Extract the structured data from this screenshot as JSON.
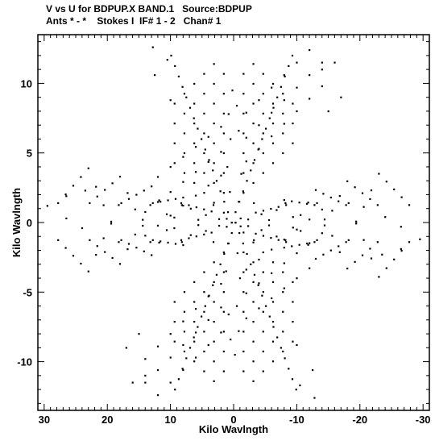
{
  "header": {
    "line1": "V vs U for BDPUP.X BAND.1   Source:BDPUP",
    "line2": "Ants * - *    Stokes I  IF# 1 - 2   Chan# 1"
  },
  "chart_data": {
    "type": "scatter",
    "xlabel": "Kilo Wavlngth",
    "ylabel": "Kilo Wavlngth",
    "xlim": [
      31,
      -31
    ],
    "ylim": [
      -13.5,
      13.5
    ],
    "xticks": [
      30,
      20,
      10,
      0,
      -10,
      -20,
      -30
    ],
    "xtick_labels": [
      "30",
      "20",
      "10",
      "0",
      "-10",
      "-20",
      "-30"
    ],
    "yticks": [
      10,
      5,
      0,
      -5,
      -10
    ],
    "ytick_labels": [
      "10",
      "5",
      "0",
      "-5",
      "-10"
    ],
    "grid": false,
    "legend": "none",
    "marker_color": "#000000",
    "arms": [
      {
        "name": "upper-left",
        "p0": [
          0.3,
          0.0
        ],
        "dp": [
          -0.6,
          0.75
        ],
        "n": 17
      },
      {
        "name": "upper-right",
        "p0": [
          -0.3,
          0.0
        ],
        "dp": [
          -0.6,
          -0.75
        ],
        "n": 17
      }
    ],
    "points": [
      [
        29.5,
        1.2
      ],
      [
        26.5,
        1.9
      ],
      [
        26.5,
        0.3
      ],
      [
        24.0,
        -0.4
      ],
      [
        23.5,
        2.3
      ],
      [
        -29.5,
        -1.2
      ],
      [
        -26.5,
        -1.9
      ],
      [
        -26.5,
        -0.3
      ],
      [
        -24.0,
        0.4
      ],
      [
        -23.5,
        -2.3
      ],
      [
        10.5,
        11.7
      ],
      [
        12.5,
        10.6
      ],
      [
        10.0,
        8.8
      ],
      [
        12.8,
        12.6
      ],
      [
        -10.5,
        -11.7
      ],
      [
        -12.5,
        -10.6
      ],
      [
        -10.0,
        -8.8
      ],
      [
        -12.8,
        -12.6
      ],
      [
        -14.0,
        11.0
      ],
      [
        -16.0,
        11.5
      ],
      [
        -15.0,
        8.0
      ],
      [
        -17.0,
        9.0
      ],
      [
        14.0,
        -11.0
      ],
      [
        16.0,
        -11.5
      ],
      [
        15.0,
        -8.0
      ],
      [
        17.0,
        -9.0
      ],
      [
        0.8,
        7.8
      ],
      [
        -0.5,
        8.4
      ],
      [
        0.2,
        9.5
      ],
      [
        0.5,
        6.0
      ],
      [
        -0.8,
        6.6
      ],
      [
        -0.8,
        -7.8
      ],
      [
        0.5,
        -8.4
      ],
      [
        -0.2,
        -9.5
      ],
      [
        -0.5,
        -6.0
      ],
      [
        0.8,
        -6.6
      ],
      [
        1.0,
        4.0
      ],
      [
        -1.2,
        3.5
      ],
      [
        0.6,
        2.2
      ],
      [
        -0.8,
        1.5
      ],
      [
        -1.0,
        -4.0
      ],
      [
        1.2,
        -3.5
      ],
      [
        -0.6,
        -2.2
      ],
      [
        0.8,
        -1.5
      ]
    ]
  }
}
